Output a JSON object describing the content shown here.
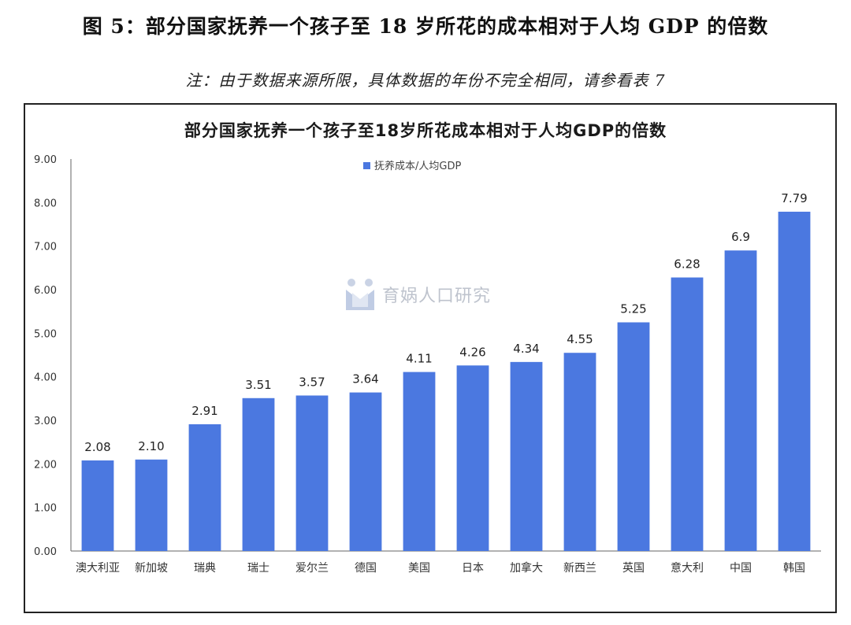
{
  "figure": {
    "title": "图 5：部分国家抚养一个孩子至 18 岁所花的成本相对于人均 GDP 的倍数",
    "note": "注：由于数据来源所限，具体数据的年份不完全相同，请参看表 7"
  },
  "watermark": {
    "text": "育娲人口研究",
    "icon": "yuwa-logo-icon"
  },
  "colors": {
    "bar": "#4b78e0",
    "axis": "#666666"
  },
  "chart_data": {
    "type": "bar",
    "title": "部分国家抚养一个孩子至18岁所花成本相对于人均GDP的倍数",
    "xlabel": "",
    "ylabel": "",
    "ylim": [
      0,
      9
    ],
    "yticks": [
      "0.00",
      "1.00",
      "2.00",
      "3.00",
      "4.00",
      "5.00",
      "6.00",
      "7.00",
      "8.00",
      "9.00"
    ],
    "legend": {
      "position": "top-center"
    },
    "grid": false,
    "categories": [
      "澳大利亚",
      "新加坡",
      "瑞典",
      "瑞士",
      "爱尔兰",
      "德国",
      "美国",
      "日本",
      "加拿大",
      "新西兰",
      "英国",
      "意大利",
      "中国",
      "韩国"
    ],
    "series": [
      {
        "name": "抚养成本/人均GDP",
        "values": [
          2.08,
          2.1,
          2.91,
          3.51,
          3.57,
          3.64,
          4.11,
          4.26,
          4.34,
          4.55,
          5.25,
          6.28,
          6.9,
          7.79
        ],
        "labels": [
          "2.08",
          "2.10",
          "2.91",
          "3.51",
          "3.57",
          "3.64",
          "4.11",
          "4.26",
          "4.34",
          "4.55",
          "5.25",
          "6.28",
          "6.9",
          "7.79"
        ]
      }
    ]
  }
}
